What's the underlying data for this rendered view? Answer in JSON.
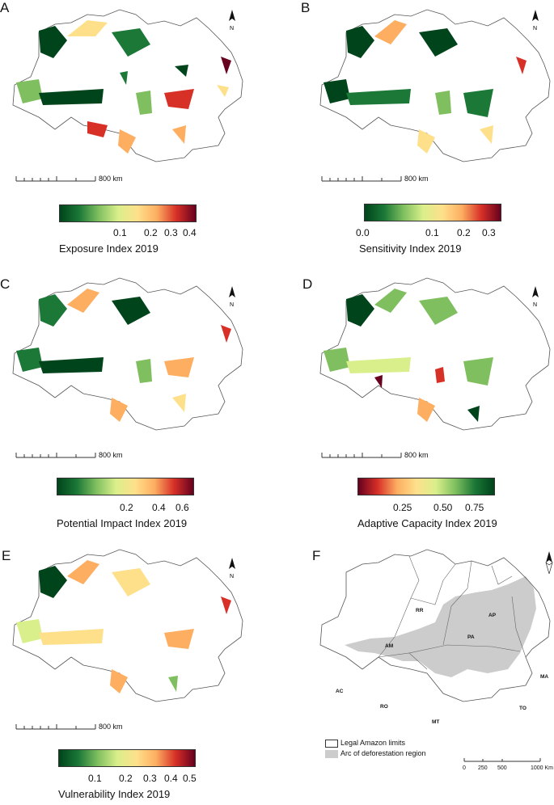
{
  "panels": [
    {
      "letter": "A",
      "title": "Exposure Index 2019",
      "scale": "800 km",
      "ticks": [
        "0.1",
        "0.2",
        "0.3",
        "0.4"
      ],
      "gradient": [
        "#00441b",
        "#1b7837",
        "#7fbf5f",
        "#d9ef8b",
        "#fee08b",
        "#fdae61",
        "#d73027",
        "#67001f"
      ]
    },
    {
      "letter": "B",
      "title": "Sensitivity Index 2019",
      "scale": "800 km",
      "ticks": [
        "0.0",
        "0.1",
        "0.2",
        "0.3"
      ],
      "gradient": [
        "#00441b",
        "#1b7837",
        "#7fbf5f",
        "#d9ef8b",
        "#fee08b",
        "#fdae61",
        "#d73027",
        "#67001f"
      ]
    },
    {
      "letter": "C",
      "title": "Potential Impact Index 2019",
      "scale": "800 km",
      "ticks": [
        "0.2",
        "0.4",
        "0.6"
      ],
      "gradient": [
        "#00441b",
        "#1b7837",
        "#7fbf5f",
        "#d9ef8b",
        "#fee08b",
        "#fdae61",
        "#d73027",
        "#67001f"
      ]
    },
    {
      "letter": "D",
      "title": "Adaptive Capacity Index 2019",
      "scale": "800 km",
      "ticks": [
        "0.25",
        "0.50",
        "0.75"
      ],
      "gradient": [
        "#67001f",
        "#d73027",
        "#fdae61",
        "#fee08b",
        "#d9ef8b",
        "#7fbf5f",
        "#1b7837",
        "#00441b"
      ]
    },
    {
      "letter": "E",
      "title": "Vulnerability Index 2019",
      "scale": "800 km",
      "ticks": [
        "0.1",
        "0.2",
        "0.3",
        "0.4",
        "0.5"
      ],
      "gradient": [
        "#00441b",
        "#1b7837",
        "#7fbf5f",
        "#d9ef8b",
        "#fee08b",
        "#fdae61",
        "#d73027",
        "#67001f"
      ]
    }
  ],
  "panelF": {
    "letter": "F",
    "states": [
      "RR",
      "AP",
      "AM",
      "PA",
      "MA",
      "AC",
      "RO",
      "TO",
      "MT"
    ],
    "legend": {
      "limits": "Legal Amazon limits",
      "arc": "Arc of deforestation region"
    },
    "scale": [
      "0",
      "250",
      "500",
      "1000 Km"
    ],
    "colors": {
      "arc": "#cccccc",
      "outline": "#555555"
    }
  },
  "north_label": "N"
}
